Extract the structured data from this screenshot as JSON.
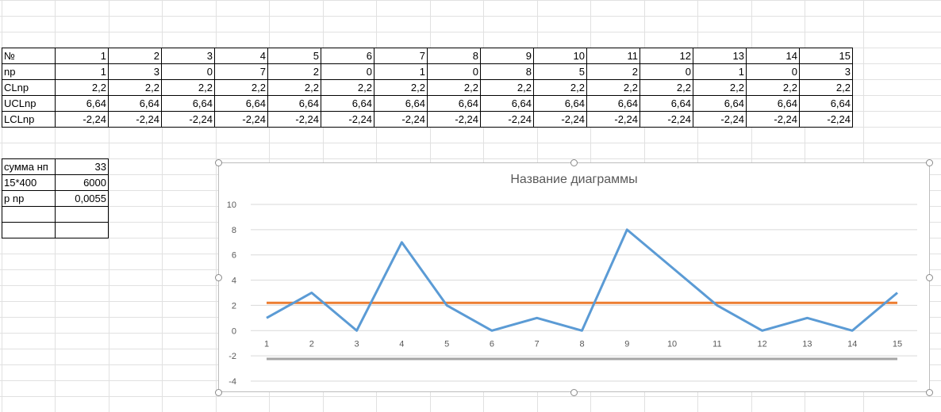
{
  "table": {
    "rows": [
      {
        "label": "№",
        "values": [
          "1",
          "2",
          "3",
          "4",
          "5",
          "6",
          "7",
          "8",
          "9",
          "10",
          "11",
          "12",
          "13",
          "14",
          "15"
        ]
      },
      {
        "label": "np",
        "values": [
          "1",
          "3",
          "0",
          "7",
          "2",
          "0",
          "1",
          "0",
          "8",
          "5",
          "2",
          "0",
          "1",
          "0",
          "3"
        ]
      },
      {
        "label": "CLnp",
        "values": [
          "2,2",
          "2,2",
          "2,2",
          "2,2",
          "2,2",
          "2,2",
          "2,2",
          "2,2",
          "2,2",
          "2,2",
          "2,2",
          "2,2",
          "2,2",
          "2,2",
          "2,2"
        ]
      },
      {
        "label": "UCLnp",
        "values": [
          "6,64",
          "6,64",
          "6,64",
          "6,64",
          "6,64",
          "6,64",
          "6,64",
          "6,64",
          "6,64",
          "6,64",
          "6,64",
          "6,64",
          "6,64",
          "6,64",
          "6,64"
        ]
      },
      {
        "label": "LCLnp",
        "values": [
          "-2,24",
          "-2,24",
          "-2,24",
          "-2,24",
          "-2,24",
          "-2,24",
          "-2,24",
          "-2,24",
          "-2,24",
          "-2,24",
          "-2,24",
          "-2,24",
          "-2,24",
          "-2,24",
          "-2,24"
        ]
      }
    ]
  },
  "summary": {
    "rows": [
      {
        "label": "сумма нп",
        "value": "33"
      },
      {
        "label": "15*400",
        "value": "6000"
      },
      {
        "label": "p np",
        "value": "0,0055"
      },
      {
        "label": "",
        "value": ""
      },
      {
        "label": "",
        "value": ""
      }
    ]
  },
  "chart_data": {
    "type": "line",
    "title": "Название диаграммы",
    "categories": [
      1,
      2,
      3,
      4,
      5,
      6,
      7,
      8,
      9,
      10,
      11,
      12,
      13,
      14,
      15
    ],
    "ylim": [
      -4,
      10
    ],
    "yticks": [
      -4,
      -2,
      0,
      2,
      4,
      6,
      8,
      10
    ],
    "grid": true,
    "series": [
      {
        "values": [
          1,
          3,
          0,
          7,
          2,
          0,
          1,
          0,
          8,
          5,
          2,
          0,
          1,
          0,
          3
        ],
        "color": "#5b9bd5"
      },
      {
        "values": [
          2.2,
          2.2,
          2.2,
          2.2,
          2.2,
          2.2,
          2.2,
          2.2,
          2.2,
          2.2,
          2.2,
          2.2,
          2.2,
          2.2,
          2.2
        ],
        "color": "#ed7d31"
      },
      {
        "values": [
          -2.24,
          -2.24,
          -2.24,
          -2.24,
          -2.24,
          -2.24,
          -2.24,
          -2.24,
          -2.24,
          -2.24,
          -2.24,
          -2.24,
          -2.24,
          -2.24,
          -2.24
        ],
        "color": "#a5a5a5"
      }
    ]
  }
}
